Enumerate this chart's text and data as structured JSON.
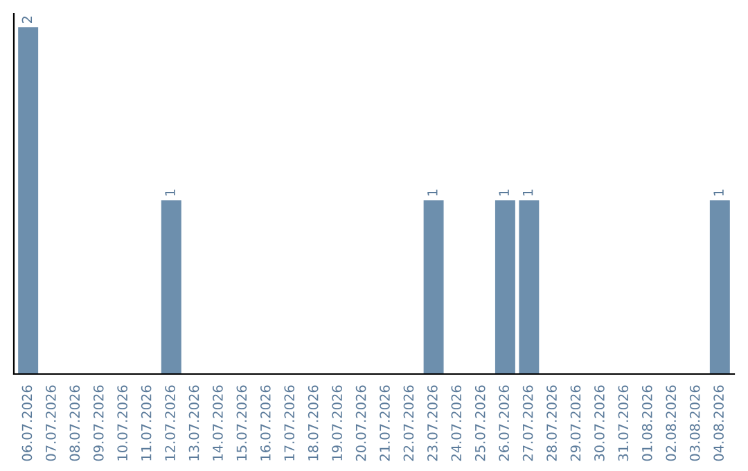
{
  "chart_data": {
    "type": "bar",
    "categories": [
      "06.07.2026",
      "07.07.2026",
      "08.07.2026",
      "09.07.2026",
      "10.07.2026",
      "11.07.2026",
      "12.07.2026",
      "13.07.2026",
      "14.07.2026",
      "15.07.2026",
      "16.07.2026",
      "17.07.2026",
      "18.07.2026",
      "19.07.2026",
      "20.07.2026",
      "21.07.2026",
      "22.07.2026",
      "23.07.2026",
      "24.07.2026",
      "25.07.2026",
      "26.07.2026",
      "27.07.2026",
      "28.07.2026",
      "29.07.2026",
      "30.07.2026",
      "31.07.2026",
      "01.08.2026",
      "02.08.2026",
      "03.08.2026",
      "04.08.2026"
    ],
    "values": [
      2,
      0,
      0,
      0,
      0,
      0,
      1,
      0,
      0,
      0,
      0,
      0,
      0,
      0,
      0,
      0,
      0,
      1,
      0,
      0,
      1,
      1,
      0,
      0,
      0,
      0,
      0,
      0,
      0,
      1
    ],
    "value_labels": [
      "2",
      null,
      null,
      null,
      null,
      null,
      "1",
      null,
      null,
      null,
      null,
      null,
      null,
      null,
      null,
      null,
      null,
      "1",
      null,
      null,
      "1",
      "1",
      null,
      null,
      null,
      null,
      null,
      null,
      null,
      "1"
    ],
    "color": "#6d8fad",
    "ylim": [
      0,
      2.08
    ],
    "tick_labels": "x",
    "grid": false,
    "legend": false
  }
}
